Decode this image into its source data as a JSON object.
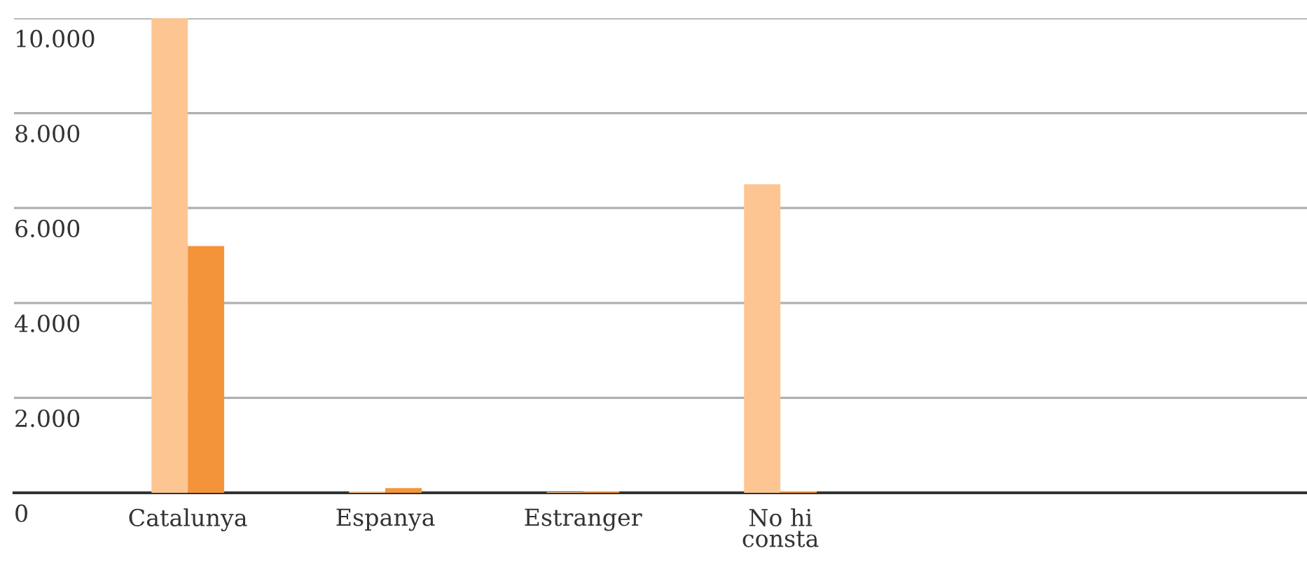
{
  "chart_data": {
    "type": "bar",
    "categories": [
      "Catalunya",
      "Espanya",
      "Estranger",
      "No hi\nconsta"
    ],
    "series": [
      {
        "color": "#fdc591",
        "values": [
          10000,
          30,
          20,
          6500
        ]
      },
      {
        "color": "#f4943a",
        "values": [
          5200,
          100,
          30,
          30
        ]
      }
    ],
    "ylim": [
      0,
      10000
    ],
    "yticks": [
      0,
      {
        "value": 2000,
        "label": "2.000"
      },
      {
        "value": 4000,
        "label": "4.000"
      },
      {
        "value": 6000,
        "label": "6.000"
      },
      {
        "value": 8000,
        "label": "8.000"
      },
      {
        "value": 10000,
        "label": "10.000"
      }
    ],
    "grid": "y"
  }
}
